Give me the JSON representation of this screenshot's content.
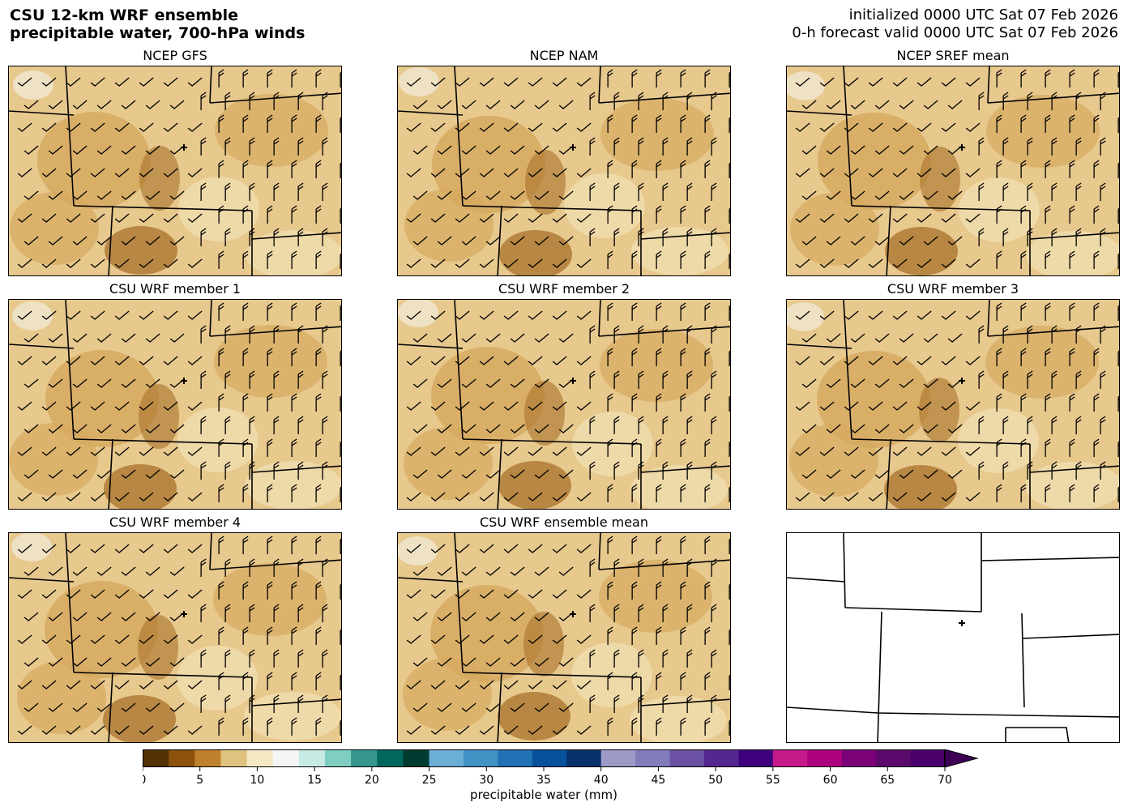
{
  "title": {
    "line1": "CSU 12-km WRF ensemble",
    "line2": "precipitable water, 700-hPa winds",
    "init": "initialized 0000 UTC Sat 07 Feb 2026",
    "valid": "0-h forecast valid 0000 UTC Sat 07 Feb 2026"
  },
  "panels": [
    {
      "title": "NCEP GFS",
      "filled": true
    },
    {
      "title": "NCEP NAM",
      "filled": true
    },
    {
      "title": "NCEP SREF mean",
      "filled": true
    },
    {
      "title": "CSU WRF member 1",
      "filled": true
    },
    {
      "title": "CSU WRF member 2",
      "filled": true
    },
    {
      "title": "CSU WRF member 3",
      "filled": true
    },
    {
      "title": "CSU WRF member 4",
      "filled": true
    },
    {
      "title": "CSU WRF ensemble mean",
      "filled": true
    },
    {
      "title": "",
      "filled": false
    }
  ],
  "colorbar": {
    "label": "precipitable water (mm)",
    "ticks": [
      "0",
      "5",
      "10",
      "15",
      "20",
      "25",
      "30",
      "35",
      "40",
      "45",
      "50",
      "55",
      "60",
      "65",
      "70"
    ],
    "range": [
      0,
      70
    ],
    "extend": "max",
    "segments": [
      {
        "from": 0,
        "to": 25,
        "colors": [
          "#543005",
          "#8c510a",
          "#bf812d",
          "#dfc27d",
          "#f6e8c3",
          "#f5f5f5",
          "#c7eae5",
          "#80cdc1",
          "#35978f",
          "#01665e",
          "#003c30"
        ]
      },
      {
        "from": 25,
        "to": 40,
        "colors": [
          "#6baed6",
          "#4292c6",
          "#2171b5",
          "#08519c",
          "#08306b"
        ]
      },
      {
        "from": 40,
        "to": 55,
        "colors": [
          "#9e9ac8",
          "#807dba",
          "#6a51a3",
          "#54278f",
          "#3f007d"
        ]
      },
      {
        "from": 55,
        "to": 70,
        "colors": [
          "#c51b8a",
          "#ae017e",
          "#7a0177",
          "#5a0a6b",
          "#49006a"
        ]
      }
    ]
  },
  "map_colors": {
    "dark": "#a8712b",
    "mid": "#d6a95f",
    "light": "#f1dfb4",
    "white": "#f5f2ea"
  }
}
